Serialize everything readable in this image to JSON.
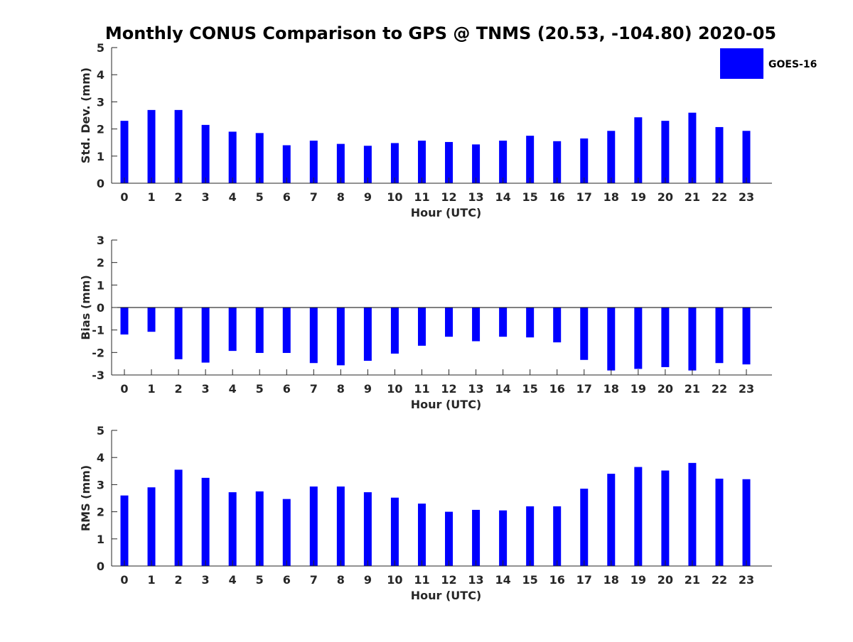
{
  "title": "Monthly CONUS Comparison to GPS @ TNMS (20.53, -104.80) 2020-05",
  "legend": {
    "label": "GOES-16",
    "color": "#0000ff",
    "placement": "top-right"
  },
  "chart_data": [
    {
      "type": "bar",
      "xlabel": "Hour (UTC)",
      "ylabel": "Std. Dev. (mm)",
      "ylim": [
        0,
        5
      ],
      "yticks": [
        0,
        1,
        2,
        3,
        4,
        5
      ],
      "categories": [
        "0",
        "1",
        "2",
        "3",
        "4",
        "5",
        "6",
        "7",
        "8",
        "9",
        "10",
        "11",
        "12",
        "13",
        "14",
        "15",
        "16",
        "17",
        "18",
        "19",
        "20",
        "21",
        "22",
        "23"
      ],
      "series": [
        {
          "name": "GOES-16",
          "color": "#0000ff",
          "values": [
            2.3,
            2.7,
            2.7,
            2.15,
            1.9,
            1.85,
            1.4,
            1.57,
            1.45,
            1.38,
            1.48,
            1.57,
            1.52,
            1.43,
            1.57,
            1.75,
            1.55,
            1.65,
            1.93,
            2.43,
            2.3,
            2.6,
            2.07,
            1.93
          ]
        }
      ],
      "grid": false
    },
    {
      "type": "bar",
      "xlabel": "Hour (UTC)",
      "ylabel": "Bias (mm)",
      "ylim": [
        -3,
        3
      ],
      "yticks": [
        -3,
        -2,
        -1,
        0,
        1,
        2,
        3
      ],
      "categories": [
        "0",
        "1",
        "2",
        "3",
        "4",
        "5",
        "6",
        "7",
        "8",
        "9",
        "10",
        "11",
        "12",
        "13",
        "14",
        "15",
        "16",
        "17",
        "18",
        "19",
        "20",
        "21",
        "22",
        "23"
      ],
      "series": [
        {
          "name": "GOES-16",
          "color": "#0000ff",
          "values": [
            -1.2,
            -1.08,
            -2.3,
            -2.45,
            -1.93,
            -2.02,
            -2.02,
            -2.47,
            -2.57,
            -2.37,
            -2.05,
            -1.7,
            -1.3,
            -1.5,
            -1.3,
            -1.33,
            -1.55,
            -2.33,
            -2.8,
            -2.73,
            -2.65,
            -2.8,
            -2.47,
            -2.53
          ]
        }
      ],
      "grid": false
    },
    {
      "type": "bar",
      "xlabel": "Hour (UTC)",
      "ylabel": "RMS (mm)",
      "ylim": [
        0,
        5
      ],
      "yticks": [
        0,
        1,
        2,
        3,
        4,
        5
      ],
      "categories": [
        "0",
        "1",
        "2",
        "3",
        "4",
        "5",
        "6",
        "7",
        "8",
        "9",
        "10",
        "11",
        "12",
        "13",
        "14",
        "15",
        "16",
        "17",
        "18",
        "19",
        "20",
        "21",
        "22",
        "23"
      ],
      "series": [
        {
          "name": "GOES-16",
          "color": "#0000ff",
          "values": [
            2.6,
            2.9,
            3.55,
            3.25,
            2.72,
            2.75,
            2.47,
            2.93,
            2.93,
            2.72,
            2.52,
            2.3,
            2.0,
            2.07,
            2.05,
            2.2,
            2.2,
            2.85,
            3.4,
            3.65,
            3.52,
            3.8,
            3.22,
            3.2
          ]
        }
      ],
      "grid": false
    }
  ]
}
